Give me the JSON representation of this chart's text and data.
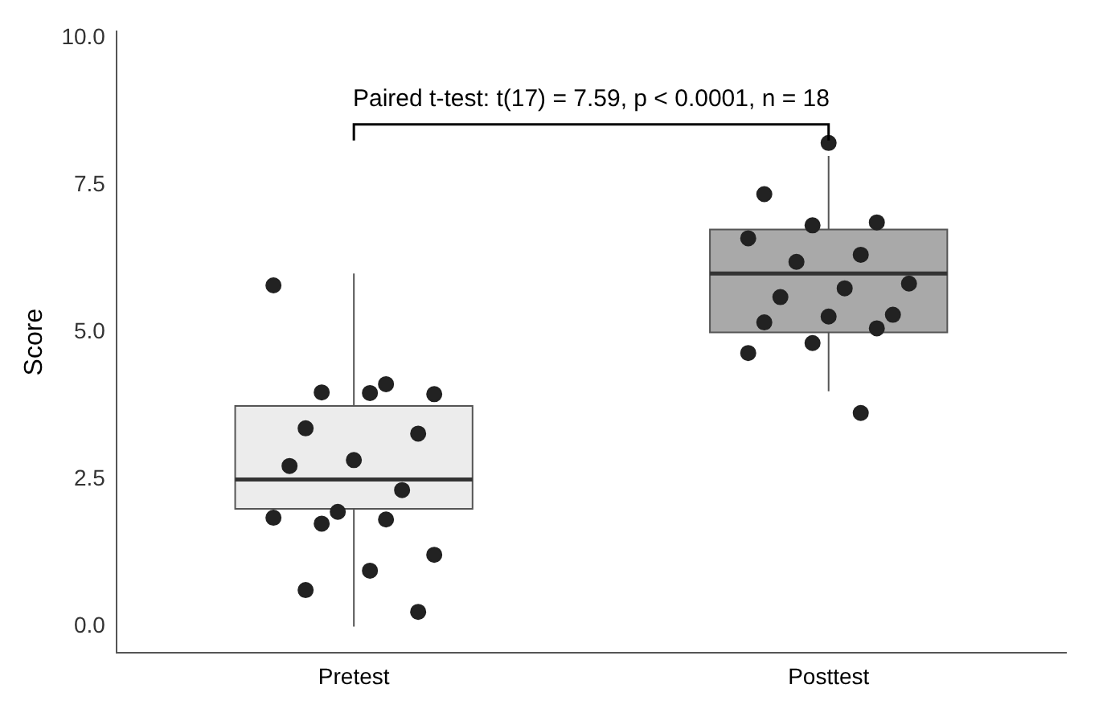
{
  "chart_data": {
    "type": "box",
    "ylabel": "Score",
    "categories": [
      "Pretest",
      "Posttest"
    ],
    "boxes": [
      {
        "low": 0,
        "q1": 2,
        "median": 2.5,
        "q3": 3.75,
        "high": 6
      },
      {
        "low": 4,
        "q1": 5,
        "median": 6,
        "q3": 6.75,
        "high": 8
      }
    ],
    "colors": [
      "#ececec",
      "#a9a9a9"
    ],
    "series": [
      {
        "type": "scatter",
        "color": "#222222",
        "x": [
          "Pretest",
          "Pretest",
          "Pretest",
          "Pretest",
          "Pretest",
          "Pretest",
          "Pretest",
          "Pretest",
          "Pretest",
          "Pretest",
          "Pretest",
          "Pretest",
          "Pretest",
          "Pretest",
          "Pretest",
          "Pretest",
          "Pretest",
          "Pretest",
          "Posttest",
          "Posttest",
          "Posttest",
          "Posttest",
          "Posttest",
          "Posttest",
          "Posttest",
          "Posttest",
          "Posttest",
          "Posttest",
          "Posttest",
          "Posttest",
          "Posttest",
          "Posttest",
          "Posttest",
          "Posttest",
          "Posttest"
        ],
        "values": [
          5.8,
          4.12,
          3.98,
          3.95,
          3.97,
          3.37,
          3.28,
          2.83,
          2.73,
          2.32,
          1.95,
          1.85,
          1.82,
          1.75,
          1.22,
          0.95,
          0.62,
          0.25,
          8.22,
          7.35,
          6.87,
          6.82,
          6.6,
          6.32,
          6.2,
          5.83,
          5.75,
          5.6,
          5.3,
          5.27,
          5.17,
          5.07,
          4.82,
          4.65,
          3.63
        ]
      }
    ],
    "ylim": [
      -0.45,
      10.12
    ],
    "yticks": [
      {
        "value": 0,
        "label": "0.0"
      },
      2.5,
      {
        "value": 5,
        "label": "5.0"
      },
      7.5,
      {
        "value": 10,
        "label": "10.0"
      }
    ],
    "annotations": [
      "Paired t-test: t(17) = 7.59, p < 0.0001, n = 18"
    ],
    "grid": false,
    "legend": false,
    "marker": "circle"
  }
}
